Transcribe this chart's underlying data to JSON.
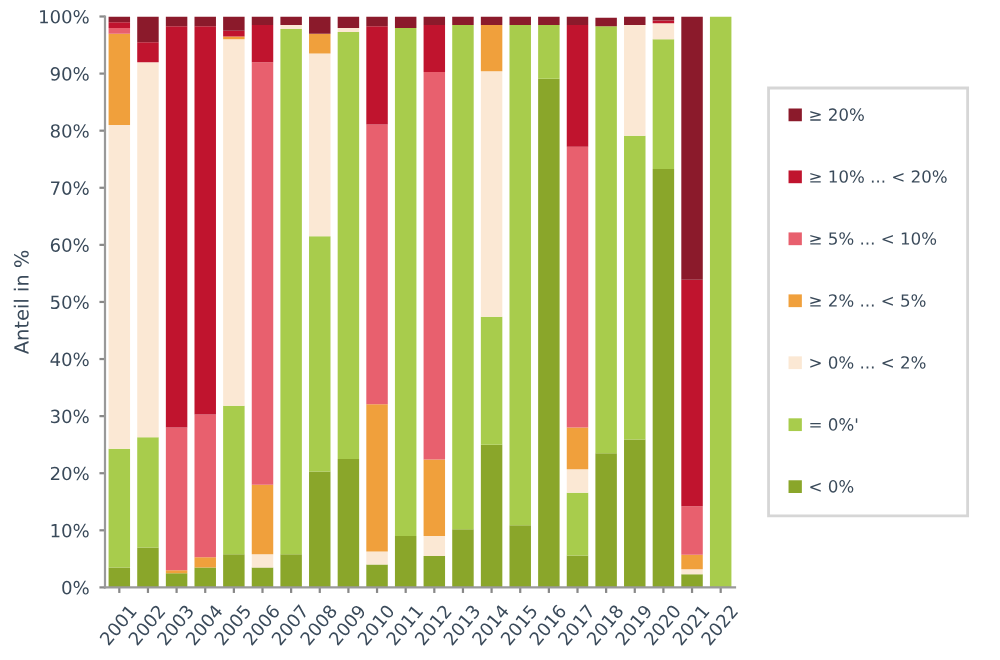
{
  "chart_data": {
    "type": "bar",
    "stacked": true,
    "ylabel": "Anteil in %",
    "categories": [
      "2001",
      "2002",
      "2003",
      "2004",
      "2005",
      "2006",
      "2007",
      "2008",
      "2009",
      "2010",
      "2011",
      "2012",
      "2013",
      "2014",
      "2015",
      "2016",
      "2017",
      "2018",
      "2019",
      "2020",
      "2021",
      "2022"
    ],
    "series": [
      {
        "name": "< 0%",
        "color": "#8aa62a",
        "values": [
          3.5,
          7,
          2.5,
          3.5,
          5.8,
          3.5,
          5.8,
          20.3,
          22.5,
          4,
          9,
          5.5,
          10.2,
          25,
          10.9,
          89.1,
          5.6,
          23.5,
          25.9,
          73.3,
          2.3,
          0
        ]
      },
      {
        "name": "= 0%'",
        "color": "#a8cc4c",
        "values": [
          20.8,
          19.3,
          0,
          0,
          26,
          0,
          92.0,
          41.2,
          74.8,
          0,
          89,
          0,
          88.3,
          22.4,
          87.6,
          9.4,
          11,
          74.8,
          53.2,
          22.7,
          0,
          100
        ]
      },
      {
        "name": "> 0% ... < 2%",
        "color": "#fbe8d4",
        "values": [
          56.7,
          65.7,
          0,
          0,
          64.2,
          2.3,
          0.7,
          32,
          0.7,
          2.3,
          0,
          3.5,
          0,
          43,
          0,
          0,
          4.1,
          null,
          19.4,
          2.8,
          0.9,
          0
        ]
      },
      {
        "name": "≥ 2% ... < 5%",
        "color": "#f0a03c",
        "values": [
          16,
          0,
          0.5,
          1.8,
          0.5,
          12.2,
          0,
          3.5,
          0,
          25.8,
          0,
          13.4,
          0,
          8.1,
          0,
          0,
          7.3,
          0,
          0,
          0,
          2.5,
          0
        ]
      },
      {
        "name": "≥ 5% ... < 10%",
        "color": "#e8606e",
        "values": [
          1,
          0,
          25,
          25,
          0,
          74,
          0,
          0,
          0,
          49,
          0,
          67.9,
          0,
          0,
          0,
          0,
          49.2,
          0,
          0,
          0,
          8.5,
          0
        ]
      },
      {
        "name": "≥ 10% ... < 20%",
        "color": "#c0142e",
        "values": [
          1,
          3.5,
          70.3,
          68,
          1,
          6.5,
          0,
          0,
          0,
          17.2,
          0,
          8.2,
          0,
          0,
          0,
          0,
          21.3,
          0,
          0,
          0.5,
          39.7,
          0
        ]
      },
      {
        "name": "≥ 20%",
        "color": "#8b1a2b",
        "values": [
          1,
          4.5,
          1.7,
          1.7,
          2.5,
          1.5,
          1.5,
          3,
          2,
          1.7,
          2,
          1.5,
          1.5,
          1.5,
          1.5,
          1.5,
          1.5,
          1.5,
          1.5,
          0.7,
          46.1,
          0
        ]
      }
    ],
    "ylim": [
      0,
      100
    ],
    "yticks": [
      {
        "value": 0,
        "label": "0%"
      },
      {
        "value": 10,
        "label": "10%"
      },
      {
        "value": 20,
        "label": "20%"
      },
      {
        "value": 30,
        "label": "30%"
      },
      {
        "value": 40,
        "label": "40%"
      },
      {
        "value": 50,
        "label": "50%"
      },
      {
        "value": 60,
        "label": "60%"
      },
      {
        "value": 70,
        "label": "70%"
      },
      {
        "value": 80,
        "label": "80%"
      },
      {
        "value": 90,
        "label": "90%"
      },
      {
        "value": 100,
        "label": "100%"
      }
    ],
    "grid": false,
    "legend": "right"
  }
}
